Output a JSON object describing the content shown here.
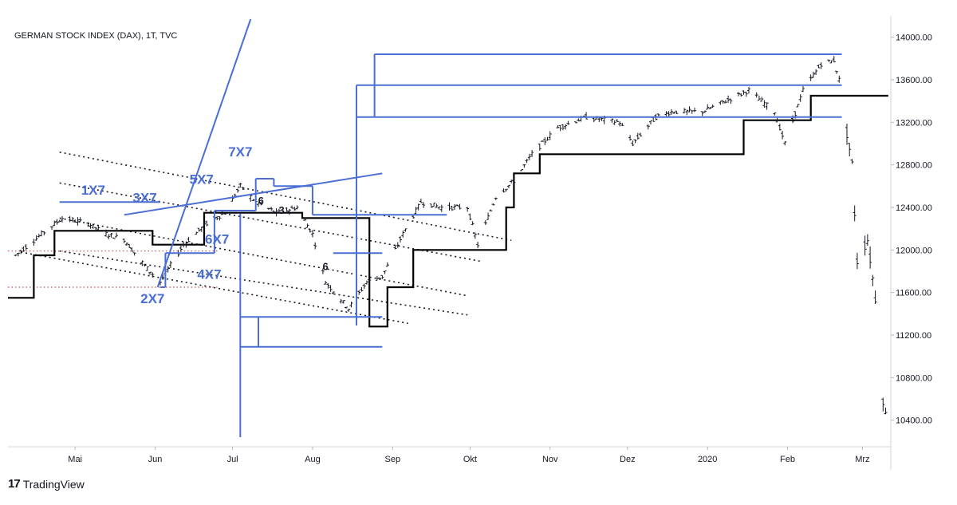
{
  "chart_data": {
    "type": "candlestick",
    "title": "GERMAN STOCK INDEX (DAX), 1T, TVC",
    "x_tick_labels": [
      "Mai",
      "Jun",
      "Jul",
      "Aug",
      "Sep",
      "Okt",
      "Nov",
      "Dez",
      "2020",
      "Feb",
      "Mrz"
    ],
    "y_tick_labels": [
      "14000.00",
      "13600.00",
      "13200.00",
      "12800.00",
      "12400.00",
      "12000.00",
      "11600.00",
      "11200.00",
      "10800.00",
      "10400.00"
    ],
    "y_ticks": [
      14000,
      13600,
      13200,
      12800,
      12400,
      12000,
      11600,
      11200,
      10800,
      10400
    ],
    "ylim": [
      10150,
      14200
    ],
    "xlim": [
      "2019-04-05",
      "2020-03-12"
    ],
    "grid": false,
    "price_path": [
      [
        "2019-04-08",
        11950
      ],
      [
        "2019-04-18",
        12150
      ],
      [
        "2019-04-26",
        12300
      ],
      [
        "2019-05-06",
        12250
      ],
      [
        "2019-05-13",
        12150
      ],
      [
        "2019-05-20",
        12100
      ],
      [
        "2019-05-28",
        11850
      ],
      [
        "2019-06-03",
        11700
      ],
      [
        "2019-06-12",
        12050
      ],
      [
        "2019-06-21",
        12250
      ],
      [
        "2019-06-28",
        12350
      ],
      [
        "2019-07-04",
        12600
      ],
      [
        "2019-07-10",
        12450
      ],
      [
        "2019-07-18",
        12350
      ],
      [
        "2019-07-26",
        12400
      ],
      [
        "2019-08-01",
        12150
      ],
      [
        "2019-08-06",
        11700
      ],
      [
        "2019-08-15",
        11450
      ],
      [
        "2019-08-22",
        11700
      ],
      [
        "2019-08-28",
        11750
      ],
      [
        "2019-09-05",
        12150
      ],
      [
        "2019-09-12",
        12450
      ],
      [
        "2019-09-20",
        12400
      ],
      [
        "2019-09-30",
        12400
      ],
      [
        "2019-10-04",
        12050
      ],
      [
        "2019-10-11",
        12500
      ],
      [
        "2019-10-18",
        12650
      ],
      [
        "2019-10-25",
        12900
      ],
      [
        "2019-11-04",
        13150
      ],
      [
        "2019-11-15",
        13250
      ],
      [
        "2019-11-28",
        13200
      ],
      [
        "2019-12-03",
        13000
      ],
      [
        "2019-12-12",
        13250
      ],
      [
        "2019-12-18",
        13300
      ],
      [
        "2019-12-30",
        13300
      ],
      [
        "2020-01-08",
        13400
      ],
      [
        "2020-01-17",
        13500
      ],
      [
        "2020-01-27",
        13300
      ],
      [
        "2020-01-31",
        13000
      ],
      [
        "2020-02-07",
        13500
      ],
      [
        "2020-02-14",
        13750
      ],
      [
        "2020-02-19",
        13780
      ],
      [
        "2020-02-21",
        13600
      ],
      [
        "2020-02-24",
        13100
      ],
      [
        "2020-02-26",
        12800
      ],
      [
        "2020-02-28",
        11900
      ],
      [
        "2020-03-03",
        12100
      ],
      [
        "2020-03-06",
        11550
      ],
      [
        "2020-03-09",
        10600
      ],
      [
        "2020-03-10",
        10450
      ]
    ],
    "step_line_black": [
      [
        "2019-04-05",
        11550
      ],
      [
        "2019-04-15",
        11550
      ],
      [
        "2019-04-15",
        11950
      ],
      [
        "2019-04-23",
        11950
      ],
      [
        "2019-04-23",
        12180
      ],
      [
        "2019-05-31",
        12180
      ],
      [
        "2019-05-31",
        12050
      ],
      [
        "2019-06-20",
        12050
      ],
      [
        "2019-06-20",
        12350
      ],
      [
        "2019-07-28",
        12350
      ],
      [
        "2019-07-28",
        12300
      ],
      [
        "2019-08-23",
        12300
      ],
      [
        "2019-08-23",
        11280
      ],
      [
        "2019-08-30",
        11280
      ],
      [
        "2019-08-30",
        11650
      ],
      [
        "2019-09-09",
        11650
      ],
      [
        "2019-09-09",
        12000
      ],
      [
        "2019-10-15",
        12000
      ],
      [
        "2019-10-15",
        12400
      ],
      [
        "2019-10-18",
        12400
      ],
      [
        "2019-10-18",
        12720
      ],
      [
        "2019-10-28",
        12720
      ],
      [
        "2019-10-28",
        12900
      ],
      [
        "2020-01-15",
        12900
      ],
      [
        "2020-01-15",
        13220
      ],
      [
        "2020-02-10",
        13220
      ],
      [
        "2020-02-10",
        13450
      ],
      [
        "2020-03-11",
        13450
      ]
    ],
    "blue_lines": [
      [
        [
          "2019-06-02",
          11650
        ],
        [
          "2019-07-08",
          14170
        ]
      ],
      [
        [
          "2019-05-20",
          12330
        ],
        [
          "2019-08-28",
          12720
        ]
      ],
      [
        [
          "2019-04-25",
          12450
        ],
        [
          "2019-06-03",
          12450
        ]
      ],
      [
        [
          "2019-06-03",
          11650
        ],
        [
          "2019-06-05",
          11650
        ]
      ],
      [
        [
          "2019-06-05",
          11650
        ],
        [
          "2019-06-05",
          11970
        ]
      ],
      [
        [
          "2019-06-05",
          11970
        ],
        [
          "2019-06-24",
          11970
        ]
      ],
      [
        [
          "2019-06-24",
          11970
        ],
        [
          "2019-06-24",
          12370
        ]
      ],
      [
        [
          "2019-06-24",
          12370
        ],
        [
          "2019-07-10",
          12370
        ]
      ],
      [
        [
          "2019-07-10",
          12370
        ],
        [
          "2019-07-10",
          12670
        ]
      ],
      [
        [
          "2019-07-10",
          12670
        ],
        [
          "2019-07-17",
          12670
        ]
      ],
      [
        [
          "2019-07-17",
          12670
        ],
        [
          "2019-07-17",
          12600
        ]
      ],
      [
        [
          "2019-07-17",
          12600
        ],
        [
          "2019-08-01",
          12600
        ]
      ],
      [
        [
          "2019-08-01",
          12600
        ],
        [
          "2019-08-01",
          12330
        ]
      ],
      [
        [
          "2019-08-01",
          12330
        ],
        [
          "2019-09-22",
          12330
        ]
      ],
      [
        [
          "2019-07-04",
          12340
        ],
        [
          "2019-07-04",
          10240
        ]
      ],
      [
        [
          "2019-07-04",
          11370
        ],
        [
          "2019-08-28",
          11370
        ]
      ],
      [
        [
          "2019-07-04",
          11090
        ],
        [
          "2019-08-28",
          11090
        ]
      ],
      [
        [
          "2019-07-11",
          11370
        ],
        [
          "2019-07-11",
          11090
        ]
      ],
      [
        [
          "2019-08-09",
          11970
        ],
        [
          "2019-08-28",
          11970
        ]
      ],
      [
        [
          "2019-08-18",
          11290
        ],
        [
          "2019-08-18",
          13550
        ]
      ],
      [
        [
          "2019-08-18",
          13550
        ],
        [
          "2020-02-22",
          13550
        ]
      ],
      [
        [
          "2019-08-18",
          13250
        ],
        [
          "2020-02-22",
          13250
        ]
      ],
      [
        [
          "2019-08-25",
          13550
        ],
        [
          "2019-08-25",
          13250
        ]
      ],
      [
        [
          "2019-08-25",
          13840
        ],
        [
          "2020-02-22",
          13840
        ]
      ],
      [
        [
          "2019-08-25",
          13840
        ],
        [
          "2019-08-25",
          13550
        ]
      ]
    ],
    "dotted_lines": [
      [
        [
          "2019-04-25",
          12920
        ],
        [
          "2019-10-17",
          12090
        ]
      ],
      [
        [
          "2019-04-25",
          12630
        ],
        [
          "2019-10-06",
          11890
        ]
      ],
      [
        [
          "2019-04-25",
          12300
        ],
        [
          "2019-09-30",
          11570
        ]
      ],
      [
        [
          "2019-04-25",
          11990
        ],
        [
          "2019-09-30",
          11390
        ]
      ],
      [
        [
          "2019-04-10",
          11980
        ],
        [
          "2019-09-07",
          11310
        ]
      ]
    ],
    "red_dotted_lines": [
      [
        [
          "2019-04-05",
          11990
        ],
        [
          "2019-06-26",
          11990
        ]
      ],
      [
        [
          "2019-04-05",
          11650
        ],
        [
          "2019-06-26",
          11650
        ]
      ]
    ],
    "annotations": [
      {
        "text": "7X7",
        "date": "2019-07-04",
        "price": 12880,
        "color": "#4a6ed3"
      },
      {
        "text": "1X7",
        "date": "2019-05-08",
        "price": 12520,
        "color": "#4a6ed3"
      },
      {
        "text": "3X7",
        "date": "2019-05-28",
        "price": 12450,
        "color": "#4a6ed3"
      },
      {
        "text": "5X7",
        "date": "2019-06-19",
        "price": 12620,
        "color": "#4a6ed3"
      },
      {
        "text": "6X7",
        "date": "2019-06-25",
        "price": 12060,
        "color": "#4a6ed3"
      },
      {
        "text": "4X7",
        "date": "2019-06-22",
        "price": 11730,
        "color": "#4a6ed3"
      },
      {
        "text": "2X7",
        "date": "2019-05-31",
        "price": 11500,
        "color": "#4a6ed3"
      },
      {
        "text": "6",
        "date": "2019-07-12",
        "price": 12430,
        "color": "#131722"
      },
      {
        "text": "3",
        "date": "2019-07-20",
        "price": 12340,
        "color": "#131722"
      },
      {
        "text": "6",
        "date": "2019-08-06",
        "price": 11810,
        "color": "#131722"
      }
    ]
  },
  "branding": {
    "logo_text": "TradingView",
    "logo_mark": "17"
  }
}
